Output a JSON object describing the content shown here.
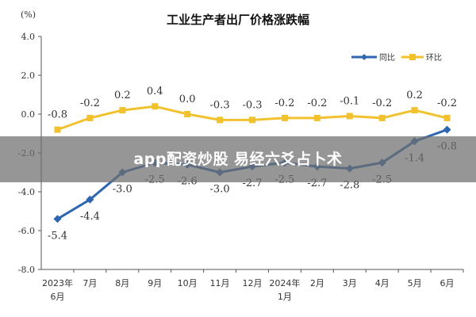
{
  "chart_data": {
    "type": "line",
    "title": "工业生产者出厂价格涨跌幅",
    "unit": "(%)",
    "categories": [
      [
        "2023年",
        "6月"
      ],
      [
        "7月"
      ],
      [
        "8月"
      ],
      [
        "9月"
      ],
      [
        "10月"
      ],
      [
        "11月"
      ],
      [
        "12月"
      ],
      [
        "2024年",
        "1月"
      ],
      [
        "2月"
      ],
      [
        "3月"
      ],
      [
        "4月"
      ],
      [
        "5月"
      ],
      [
        "6月"
      ]
    ],
    "ylim": [
      -8.0,
      4.0
    ],
    "yticks": [
      "4.0",
      "2.0",
      "0.0",
      "-2.0",
      "-4.0",
      "-6.0",
      "-8.0"
    ],
    "legend_position": "top-right",
    "series": [
      {
        "name": "同比",
        "color": "#2e66b0",
        "values": [
          -5.4,
          -4.4,
          -3.0,
          -2.5,
          -2.6,
          -3.0,
          -2.7,
          -2.5,
          -2.7,
          -2.8,
          -2.5,
          -1.4,
          -0.8
        ],
        "labels": [
          "-5.4",
          "-4.4",
          "-3.0",
          "-2.5",
          "-2.6",
          "-3.0",
          "-2.7",
          "-2.5",
          "-2.7",
          "-2.8",
          "-2.5",
          "-1.4",
          "-0.8"
        ]
      },
      {
        "name": "环比",
        "color": "#f2c12e",
        "values": [
          -0.8,
          -0.2,
          0.2,
          0.4,
          0.0,
          -0.3,
          -0.3,
          -0.2,
          -0.2,
          -0.1,
          -0.2,
          0.2,
          -0.2
        ],
        "labels": [
          "-0.8",
          "-0.2",
          "0.2",
          "0.4",
          "0.0",
          "-0.3",
          "-0.3",
          "-0.2",
          "-0.2",
          "-0.1",
          "-0.2",
          "0.2",
          "-0.2"
        ]
      }
    ]
  },
  "overlay": {
    "text": "app配资炒股 易经六爻占卜术"
  }
}
